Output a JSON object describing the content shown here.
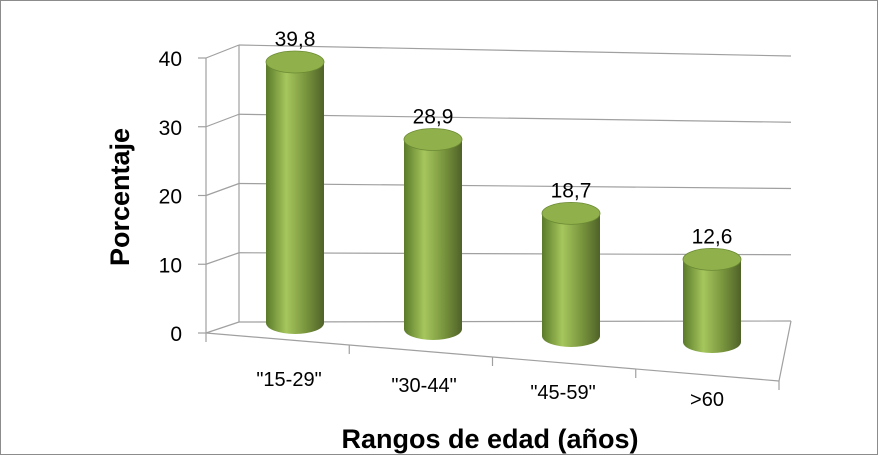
{
  "chart_data": {
    "type": "bar",
    "style": "3d-cylinder",
    "categories": [
      "\"15-29\"",
      "\"30-44\"",
      "\"45-59\"",
      ">60"
    ],
    "values": [
      39.8,
      28.9,
      18.7,
      12.6
    ],
    "value_labels": [
      "39,8",
      "28,9",
      "18,7",
      "12,6"
    ],
    "title": "",
    "xlabel": "Rangos de edad (años)",
    "ylabel": "Porcentaje",
    "ylim": [
      0,
      40
    ],
    "yticks": [
      0,
      10,
      20,
      30,
      40
    ],
    "ytick_labels": [
      "0",
      "10",
      "20",
      "30",
      "40"
    ],
    "grid": true,
    "legend": "none",
    "colors": {
      "bar_main": "#77933c",
      "bar_light": "#a6c65d",
      "bar_dark": "#4f6228",
      "top": "#8fb04a",
      "grid": "#a0a0a0"
    }
  }
}
